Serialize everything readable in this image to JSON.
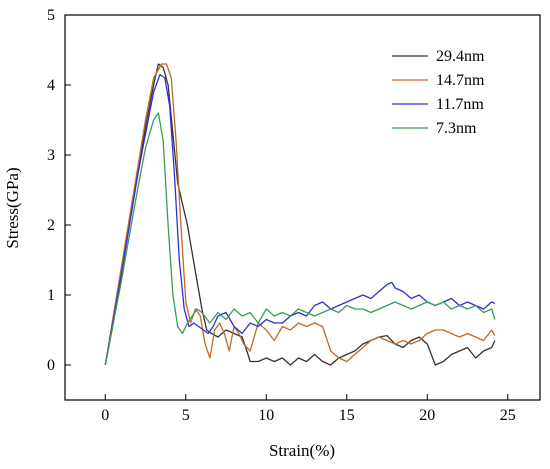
{
  "chart_data": {
    "type": "line",
    "title": "",
    "xlabel": "Strain(%)",
    "ylabel": "Stress(GPa)",
    "xlim": [
      -2.5,
      27
    ],
    "ylim": [
      -0.5,
      5
    ],
    "xticks": [
      "0",
      "5",
      "10",
      "15",
      "20",
      "25"
    ],
    "yticks": [
      "0",
      "1",
      "2",
      "3",
      "4",
      "5"
    ],
    "legend_position": "top-right",
    "grid": false,
    "series": [
      {
        "name": "29.4nm",
        "color": "#333333",
        "x": [
          0,
          0.5,
          1,
          1.5,
          2,
          2.5,
          3,
          3.3,
          3.6,
          3.9,
          4.2,
          4.5,
          4.8,
          5.1,
          5.4,
          5.7,
          6,
          6.3,
          6.6,
          7,
          7.5,
          8,
          8.5,
          8.8,
          9,
          9.5,
          10,
          10.5,
          11,
          11.5,
          12,
          12.5,
          13,
          13.5,
          14,
          14.5,
          15,
          15.5,
          16,
          16.5,
          17,
          17.5,
          18,
          18.5,
          19,
          19.5,
          20,
          20.5,
          21,
          21.5,
          22,
          22.5,
          23,
          23.5,
          24,
          24.2
        ],
        "y": [
          0,
          0.6,
          1.3,
          2.0,
          2.7,
          3.4,
          4.0,
          4.3,
          4.25,
          4.0,
          3.3,
          2.6,
          2.3,
          2.0,
          1.6,
          1.2,
          0.8,
          0.5,
          0.45,
          0.4,
          0.5,
          0.45,
          0.4,
          0.2,
          0.05,
          0.05,
          0.1,
          0.05,
          0.1,
          0.0,
          0.1,
          0.05,
          0.15,
          0.05,
          0.0,
          0.1,
          0.15,
          0.2,
          0.3,
          0.35,
          0.4,
          0.42,
          0.3,
          0.25,
          0.35,
          0.4,
          0.3,
          0.0,
          0.05,
          0.15,
          0.2,
          0.25,
          0.1,
          0.2,
          0.25,
          0.35
        ]
      },
      {
        "name": "14.7nm",
        "color": "#c06a2b",
        "x": [
          0,
          0.5,
          1,
          1.5,
          2,
          2.5,
          3,
          3.5,
          3.8,
          4.1,
          4.4,
          4.7,
          5,
          5.3,
          5.6,
          5.9,
          6.2,
          6.5,
          6.8,
          7.1,
          7.4,
          7.7,
          8,
          8.3,
          8.6,
          9,
          9.5,
          10,
          10.5,
          11,
          11.5,
          12,
          12.5,
          13,
          13.5,
          14,
          14.5,
          15,
          15.5,
          16,
          16.5,
          17,
          17.5,
          18,
          18.5,
          19,
          19.5,
          20,
          20.5,
          21,
          21.5,
          22,
          22.5,
          23,
          23.5,
          24,
          24.2
        ],
        "y": [
          0,
          0.7,
          1.4,
          2.1,
          2.8,
          3.5,
          4.1,
          4.3,
          4.3,
          4.1,
          3.2,
          2.0,
          0.9,
          0.6,
          0.8,
          0.7,
          0.3,
          0.1,
          0.5,
          0.6,
          0.45,
          0.2,
          0.55,
          0.45,
          0.3,
          0.2,
          0.6,
          0.5,
          0.35,
          0.55,
          0.5,
          0.6,
          0.55,
          0.6,
          0.55,
          0.2,
          0.1,
          0.05,
          0.15,
          0.25,
          0.35,
          0.4,
          0.35,
          0.3,
          0.35,
          0.3,
          0.35,
          0.45,
          0.5,
          0.5,
          0.45,
          0.4,
          0.45,
          0.4,
          0.35,
          0.5,
          0.42
        ]
      },
      {
        "name": "11.7nm",
        "color": "#2f2fd6",
        "x": [
          0,
          0.5,
          1,
          1.5,
          2,
          2.5,
          3,
          3.4,
          3.7,
          4.0,
          4.3,
          4.6,
          4.9,
          5.2,
          5.5,
          5.8,
          6.1,
          6.4,
          6.7,
          7,
          7.5,
          8,
          8.5,
          9,
          9.5,
          10,
          10.5,
          11,
          11.5,
          12,
          12.5,
          13,
          13.5,
          14,
          14.5,
          15,
          15.5,
          16,
          16.5,
          17,
          17.5,
          17.8,
          18,
          18.5,
          19,
          19.5,
          20,
          20.5,
          21,
          21.5,
          22,
          22.5,
          23,
          23.5,
          24,
          24.2
        ],
        "y": [
          0,
          0.65,
          1.3,
          2.0,
          2.7,
          3.3,
          3.9,
          4.15,
          4.1,
          3.7,
          2.7,
          1.5,
          0.8,
          0.55,
          0.6,
          0.55,
          0.5,
          0.45,
          0.55,
          0.7,
          0.75,
          0.55,
          0.45,
          0.6,
          0.55,
          0.65,
          0.6,
          0.6,
          0.7,
          0.75,
          0.7,
          0.85,
          0.9,
          0.8,
          0.85,
          0.9,
          0.95,
          1.0,
          0.95,
          1.05,
          1.15,
          1.18,
          1.1,
          1.05,
          0.95,
          1.0,
          0.9,
          0.85,
          0.9,
          0.95,
          0.85,
          0.9,
          0.85,
          0.8,
          0.9,
          0.88
        ]
      },
      {
        "name": "7.3nm",
        "color": "#3e9b57",
        "x": [
          0,
          0.5,
          1,
          1.5,
          2,
          2.5,
          3,
          3.3,
          3.6,
          3.9,
          4.2,
          4.5,
          4.8,
          5.1,
          5.4,
          5.7,
          6,
          6.5,
          7,
          7.5,
          8,
          8.5,
          9,
          9.5,
          10,
          10.5,
          11,
          11.5,
          12,
          12.5,
          13,
          13.5,
          14,
          14.5,
          15,
          15.5,
          16,
          16.5,
          17,
          17.5,
          18,
          18.5,
          19,
          19.5,
          20,
          20.5,
          21,
          21.5,
          22,
          22.5,
          23,
          23.5,
          24,
          24.2
        ],
        "y": [
          0,
          0.6,
          1.2,
          1.85,
          2.5,
          3.1,
          3.5,
          3.6,
          3.2,
          2.0,
          1.0,
          0.55,
          0.45,
          0.6,
          0.7,
          0.8,
          0.75,
          0.6,
          0.75,
          0.65,
          0.8,
          0.7,
          0.75,
          0.6,
          0.8,
          0.7,
          0.75,
          0.7,
          0.8,
          0.75,
          0.7,
          0.75,
          0.8,
          0.75,
          0.85,
          0.8,
          0.8,
          0.75,
          0.8,
          0.85,
          0.9,
          0.85,
          0.8,
          0.85,
          0.9,
          0.85,
          0.9,
          0.8,
          0.85,
          0.8,
          0.85,
          0.75,
          0.8,
          0.65
        ]
      }
    ]
  }
}
